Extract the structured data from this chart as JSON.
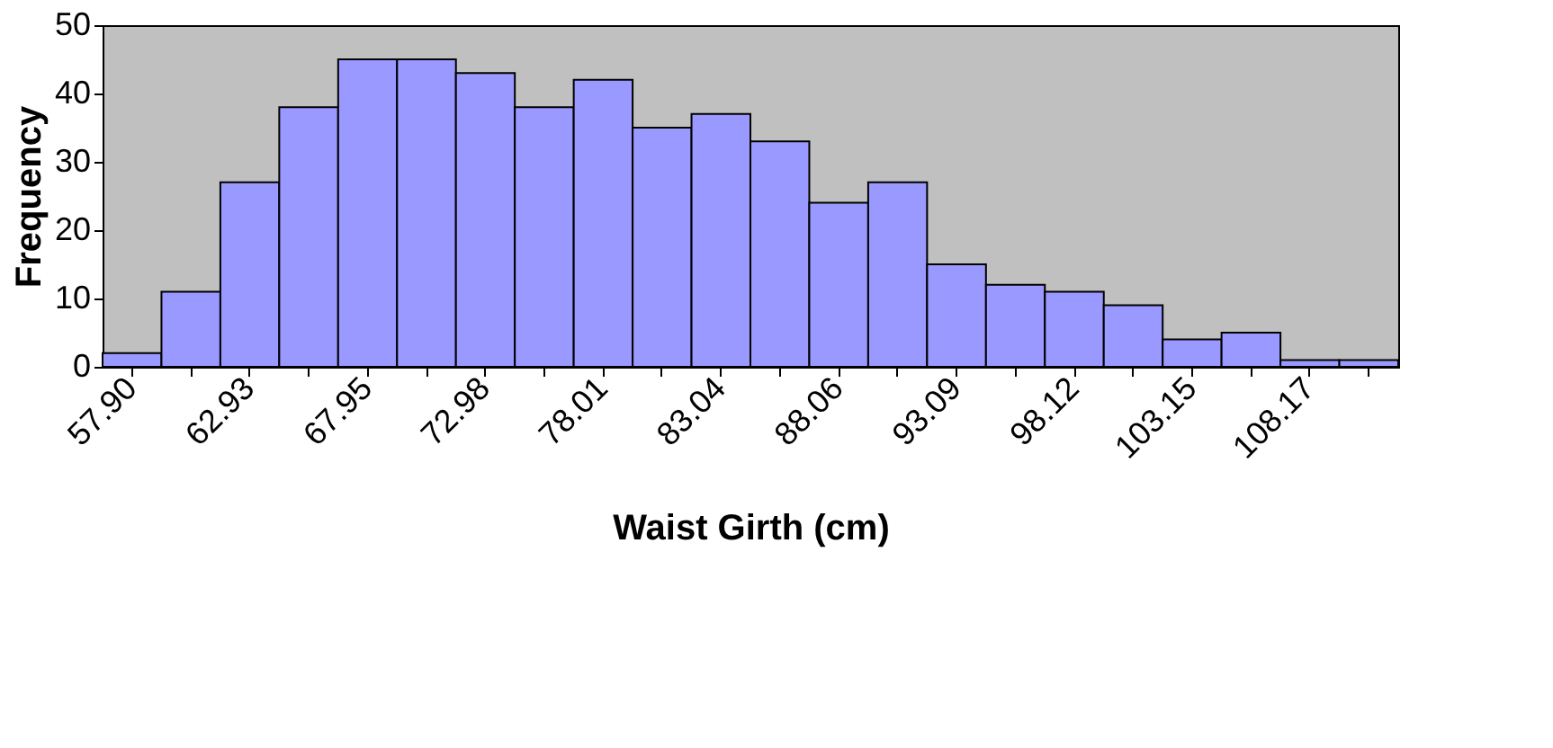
{
  "chart_data": {
    "type": "bar",
    "xlabel": "Waist Girth (cm)",
    "ylabel": "Frequency",
    "categories": [
      "57.90",
      null,
      "62.93",
      null,
      "67.95",
      null,
      "72.98",
      null,
      "78.01",
      null,
      "83.04",
      null,
      "88.06",
      null,
      "93.09",
      null,
      "98.12",
      null,
      "103.15",
      null,
      "108.17",
      null
    ],
    "values": [
      2,
      11,
      27,
      38,
      45,
      45,
      43,
      38,
      42,
      35,
      37,
      33,
      24,
      27,
      15,
      12,
      11,
      9,
      4,
      5,
      1,
      1
    ],
    "color": "#9999ff",
    "ylim": [
      0,
      50
    ],
    "yticks": [
      0,
      10,
      20,
      30,
      40,
      50
    ],
    "grid": false
  }
}
